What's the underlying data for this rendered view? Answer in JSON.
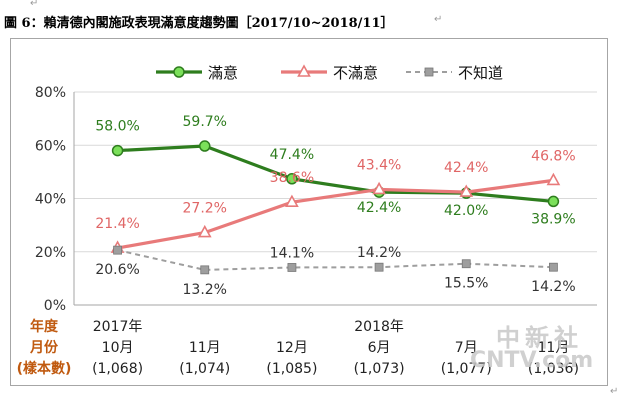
{
  "title": "圖 6：賴清德內閣施政表現滿意度趨勢圖［2017/10~2018/11］",
  "chart_data": {
    "type": "line",
    "categories": [
      [
        "2017年",
        "10月",
        "(1,068)"
      ],
      [
        "11月",
        "(1,074)"
      ],
      [
        "12月",
        "(1,085)"
      ],
      [
        "2018年",
        "6月",
        "(1,073)"
      ],
      [
        "7月",
        "(1,077)"
      ],
      [
        "11月",
        "(1,036)"
      ]
    ],
    "row_labels": [
      "年度",
      "月份",
      "(樣本數)"
    ],
    "ylim": [
      0,
      80
    ],
    "yticks": [
      "0%",
      "20%",
      "40%",
      "60%",
      "80%"
    ],
    "grid": true,
    "legend": "top",
    "series": [
      {
        "name": "滿意",
        "values": [
          58.0,
          59.7,
          47.4,
          42.4,
          42.0,
          38.9
        ],
        "labels": [
          "58.0%",
          "59.7%",
          "47.4%",
          "42.4%",
          "42.0%",
          "38.9%"
        ],
        "color": "#2e7d1e",
        "marker": "circle",
        "line": "solid"
      },
      {
        "name": "不滿意",
        "values": [
          21.4,
          27.2,
          38.6,
          43.4,
          42.4,
          46.8
        ],
        "labels": [
          "21.4%",
          "27.2%",
          "38.6%",
          "43.4%",
          "42.4%",
          "46.8%"
        ],
        "color": "#e87a7a",
        "marker": "triangle",
        "line": "solid"
      },
      {
        "name": "不知道",
        "values": [
          20.6,
          13.2,
          14.1,
          14.2,
          15.5,
          14.2
        ],
        "labels": [
          "20.6%",
          "13.2%",
          "14.1%",
          "14.2%",
          "15.5%",
          "14.2%"
        ],
        "color": "#9e9e9e",
        "marker": "square",
        "line": "dashed"
      }
    ]
  },
  "watermark": {
    "line1": "中新社",
    "line2": "CNTV.com"
  }
}
